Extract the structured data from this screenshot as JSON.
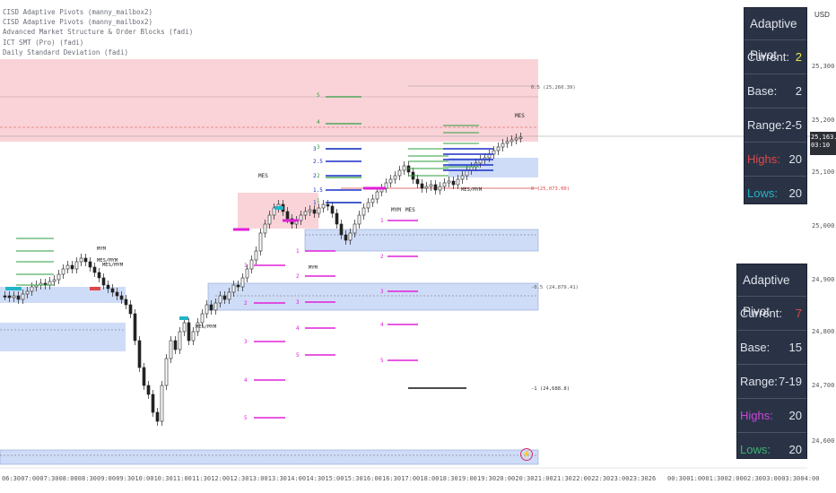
{
  "indicators": [
    "CISD Adaptive Pivots (manny_mailbox2)",
    "CISD Adaptive Pivots (manny_mailbox2)",
    "Advanced Market Structure & Order Blocks (fadi)",
    "ICT SMT (Pro) (fadi)",
    "Daily Standard Deviation (fadi)"
  ],
  "currency": "USD",
  "current_price": {
    "price": "25,163.00",
    "countdown": "03:10"
  },
  "panel_top": {
    "title": "Adaptive Pivot",
    "rows": [
      {
        "label": "Current:",
        "value": "2",
        "label_color": "#dfe3ea",
        "value_color": "#e8e84a"
      },
      {
        "label": "Base:",
        "value": "2",
        "label_color": "#dfe3ea",
        "value_color": "#dfe3ea"
      },
      {
        "label": "Range:",
        "value": "2-5",
        "label_color": "#dfe3ea",
        "value_color": "#dfe3ea"
      },
      {
        "label": "Highs:",
        "value": "20",
        "label_color": "#e04848",
        "value_color": "#dfe3ea"
      },
      {
        "label": "Lows:",
        "value": "20",
        "label_color": "#22b5c8",
        "value_color": "#dfe3ea"
      }
    ]
  },
  "panel_bottom": {
    "title": "Adaptive Pivot",
    "rows": [
      {
        "label": "Current:",
        "value": "7",
        "label_color": "#dfe3ea",
        "value_color": "#e04848"
      },
      {
        "label": "Base:",
        "value": "15",
        "label_color": "#dfe3ea",
        "value_color": "#dfe3ea"
      },
      {
        "label": "Range:",
        "value": "7-19",
        "label_color": "#dfe3ea",
        "value_color": "#dfe3ea"
      },
      {
        "label": "Highs:",
        "value": "20",
        "label_color": "#c846d8",
        "value_color": "#dfe3ea"
      },
      {
        "label": "Lows:",
        "value": "20",
        "label_color": "#3cb371",
        "value_color": "#dfe3ea"
      }
    ]
  },
  "y_axis": [
    "25,300.00",
    "25,200.00",
    "25,100.00",
    "25,000.00",
    "24,900.00",
    "24,800.00",
    "24,700.00",
    "24,600.00"
  ],
  "x_axis": [
    "06:30",
    "07:00",
    "07:30",
    "08:00",
    "08:30",
    "09:00",
    "09:30",
    "10:00",
    "10:30",
    "11:00",
    "11:30",
    "12:00",
    "12:30",
    "13:00",
    "13:30",
    "14:00",
    "14:30",
    "15:00",
    "15:30",
    "16:00",
    "16:30",
    "17:00",
    "18:00",
    "18:30",
    "19:00",
    "19:30",
    "20:00",
    "20:30",
    "21:00",
    "21:30",
    "22:00",
    "22:30",
    "23:00",
    "23:30",
    "26",
    "00:30",
    "01:00",
    "01:30",
    "02:00",
    "02:30",
    "03:00",
    "03:30",
    "04:00"
  ],
  "annotations": {
    "sd_top": "0.5 (25,260.39)",
    "sd_zero": "0 (25,073.00)",
    "sd_neg05": "-0.5 (24,879.41)",
    "sd_neg1": "-1 (24,688.8)",
    "mes_labels": [
      "MES",
      "MES",
      "MES/MYM",
      "MES/MYM",
      "MES/MYM",
      "MES",
      "MES/MYM"
    ],
    "mym_labels": [
      "MYM",
      "MYM",
      "MYM"
    ],
    "green_levels": [
      "5",
      "4",
      "3",
      "2",
      "1"
    ],
    "blue_levels": [
      "3",
      "2.5",
      "2",
      "1.5",
      "1"
    ],
    "magenta_levels": [
      "1",
      "2",
      "3",
      "4",
      "5"
    ],
    "bolt": "⚡"
  },
  "colors": {
    "green": "#2e9e3e",
    "blue": "#1a2ec8",
    "magenta": "#e020d8",
    "red_zone": "#f7c7cc",
    "blue_zone": "#cfdcf7"
  }
}
